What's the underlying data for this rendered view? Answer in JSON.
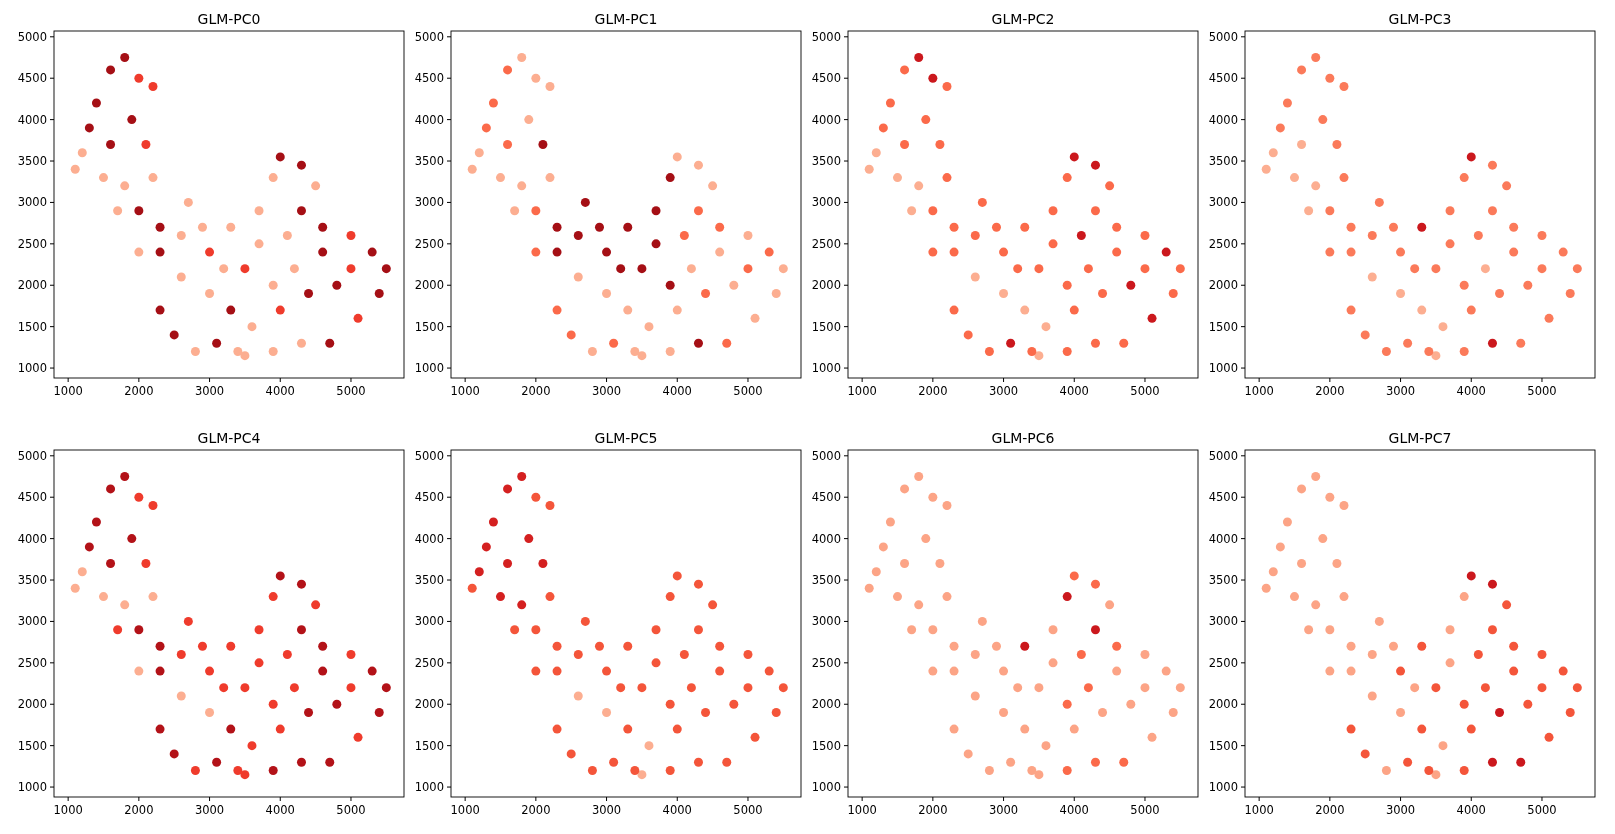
{
  "chart_data": [
    {
      "type": "scatter",
      "title": "GLM-PC0",
      "xlim": [
        800,
        5750
      ],
      "ylim": [
        880,
        5070
      ],
      "xticks": [
        1000,
        2000,
        3000,
        4000,
        5000
      ],
      "yticks": [
        1000,
        1500,
        2000,
        2500,
        3000,
        3500,
        4000,
        4500,
        5000
      ],
      "marker": "circle",
      "series": [
        {
          "color": "#fcae91",
          "x": [
            1100,
            1500,
            1800,
            2200,
            1700,
            2600,
            2900,
            3300,
            2600,
            2800,
            3000,
            3700,
            3700,
            3900,
            4500,
            4100,
            4300,
            3900,
            3500,
            3600,
            4200,
            3900,
            3400,
            2700,
            1200,
            2000,
            3200
          ],
          "values": [
            3400,
            3300,
            3200,
            3300,
            2900,
            2600,
            2700,
            2700,
            2100,
            1200,
            1900,
            2500,
            2900,
            3300,
            3200,
            2600,
            1300,
            1200,
            1150,
            1500,
            2200,
            2000,
            1200,
            3000,
            3600,
            2400,
            2200
          ]
        },
        {
          "color": "#ef3b2c",
          "x": [
            2000,
            2200,
            2100,
            3000,
            3500,
            5000,
            5100,
            4000,
            5000
          ],
          "values": [
            4500,
            4400,
            3700,
            2400,
            2200,
            2600,
            1600,
            1700,
            2200
          ]
        },
        {
          "color": "#a50f15",
          "x": [
            1400,
            1600,
            1800,
            1900,
            1600,
            1300,
            2000,
            2300,
            2300,
            2300,
            2500,
            3100,
            3300,
            4000,
            4300,
            4300,
            4600,
            5300,
            5500,
            5400,
            4700,
            4400,
            4800,
            4600
          ],
          "values": [
            4200,
            4600,
            4750,
            4000,
            3700,
            3900,
            2900,
            2700,
            2400,
            1700,
            1400,
            1300,
            1700,
            3550,
            3450,
            2900,
            2700,
            2400,
            2200,
            1900,
            1300,
            1900,
            2000,
            2400
          ]
        }
      ]
    },
    {
      "type": "scatter",
      "title": "GLM-PC1",
      "xlim": [
        800,
        5750
      ],
      "ylim": [
        880,
        5070
      ],
      "xticks": [
        1000,
        2000,
        3000,
        4000,
        5000
      ],
      "yticks": [
        1000,
        1500,
        2000,
        2500,
        3000,
        3500,
        4000,
        4500,
        5000
      ],
      "marker": "circle",
      "series": [
        {
          "color": "#fcae91",
          "x": [
            1100,
            1800,
            2000,
            2200,
            1900,
            1500,
            1800,
            2200,
            1700,
            2600,
            2800,
            3300,
            3000,
            4000,
            4300,
            4500,
            5000,
            5500,
            5400,
            5100,
            3900,
            3500,
            3600,
            4000,
            4800,
            4200,
            4600,
            3400,
            1200
          ],
          "values": [
            3400,
            4750,
            4500,
            4400,
            4000,
            3300,
            3200,
            3300,
            2900,
            2100,
            1200,
            1700,
            1900,
            3550,
            3450,
            3200,
            2600,
            2200,
            1900,
            1600,
            1200,
            1150,
            1500,
            1700,
            2000,
            2200,
            2400,
            1200,
            3600
          ]
        },
        {
          "color": "#fb6a4a",
          "x": [
            1300,
            1400,
            1600,
            1600,
            2000,
            2300,
            2500,
            3100,
            4300,
            4100,
            4600,
            5300,
            4700,
            4400,
            5000,
            2000
          ],
          "values": [
            3900,
            4200,
            4600,
            3700,
            2900,
            1700,
            1400,
            1300,
            2900,
            2600,
            2700,
            2400,
            1300,
            1900,
            2200,
            2400
          ]
        },
        {
          "color": "#a50f15",
          "x": [
            2300,
            2300,
            2600,
            2900,
            3300,
            3000,
            3500,
            3700,
            3700,
            3900,
            2700,
            3200,
            2100,
            4300,
            3900
          ],
          "values": [
            2700,
            2400,
            2600,
            2700,
            2700,
            2400,
            2200,
            2500,
            2900,
            3300,
            3000,
            2200,
            3700,
            1300,
            2000
          ]
        }
      ]
    },
    {
      "type": "scatter",
      "title": "GLM-PC2",
      "xlim": [
        800,
        5750
      ],
      "ylim": [
        880,
        5070
      ],
      "xticks": [
        1000,
        2000,
        3000,
        4000,
        5000
      ],
      "yticks": [
        1000,
        1500,
        2000,
        2500,
        3000,
        3500,
        4000,
        4500,
        5000
      ],
      "marker": "circle",
      "series": [
        {
          "color": "#fcae91",
          "x": [
            1100,
            1500,
            1800,
            1700,
            2600,
            3300,
            3000,
            3500,
            3600,
            1200
          ],
          "values": [
            3400,
            3300,
            3200,
            2900,
            2100,
            1700,
            1900,
            1150,
            1500,
            3600
          ]
        },
        {
          "color": "#fb6a4a",
          "x": [
            1300,
            1400,
            1600,
            2200,
            1900,
            1600,
            2100,
            2200,
            2000,
            2300,
            2300,
            2600,
            2900,
            3300,
            3000,
            2300,
            2500,
            2800,
            3500,
            3700,
            3700,
            3900,
            4500,
            4300,
            4600,
            5000,
            5500,
            5400,
            4700,
            4300,
            3900,
            4000,
            4400,
            4200,
            3900,
            4600,
            5000,
            3400,
            2700,
            2000,
            3200
          ],
          "values": [
            3900,
            4200,
            4600,
            4400,
            4000,
            3700,
            3700,
            3300,
            2900,
            2700,
            2400,
            2600,
            2700,
            2700,
            2400,
            1700,
            1400,
            1200,
            2200,
            2500,
            2900,
            3300,
            3200,
            2900,
            2700,
            2600,
            2200,
            1900,
            1300,
            1300,
            1200,
            1700,
            1900,
            2200,
            2000,
            2400,
            2200,
            1200,
            3000,
            2400,
            2200
          ]
        },
        {
          "color": "#cb181d",
          "x": [
            1800,
            2000,
            4000,
            4300,
            4100,
            5100,
            4800,
            3100,
            5300
          ],
          "values": [
            4750,
            4500,
            3550,
            3450,
            2600,
            1600,
            2000,
            1300,
            2400
          ]
        }
      ]
    },
    {
      "type": "scatter",
      "title": "GLM-PC3",
      "xlim": [
        800,
        5750
      ],
      "ylim": [
        880,
        5070
      ],
      "xticks": [
        1000,
        2000,
        3000,
        4000,
        5000
      ],
      "yticks": [
        1000,
        1500,
        2000,
        2500,
        3000,
        3500,
        4000,
        4500,
        5000
      ],
      "marker": "circle",
      "series": [
        {
          "color": "#fcae91",
          "x": [
            1100,
            1600,
            1500,
            1800,
            1700,
            2600,
            3300,
            3000,
            3500,
            3600,
            1200,
            4200
          ],
          "values": [
            3400,
            3700,
            3300,
            3200,
            2900,
            2100,
            1700,
            1900,
            1150,
            1500,
            3600,
            2200
          ]
        },
        {
          "color": "#fb7a5a",
          "x": [
            1300,
            1400,
            1600,
            1800,
            2000,
            2200,
            1900,
            2100,
            2200,
            2000,
            2300,
            2300,
            2600,
            2900,
            3000,
            2300,
            2500,
            2800,
            3100,
            3500,
            3700,
            3700,
            3900,
            4300,
            4500,
            4300,
            4100,
            4600,
            5000,
            5300,
            5500,
            5400,
            5100,
            4700,
            3900,
            4000,
            4400,
            4800,
            3900,
            4600,
            5000,
            3400,
            2700,
            2000,
            3200
          ],
          "values": [
            3900,
            4200,
            4600,
            4750,
            4500,
            4400,
            4000,
            3700,
            3300,
            2900,
            2700,
            2400,
            2600,
            2700,
            2400,
            1700,
            1400,
            1200,
            1300,
            2200,
            2500,
            2900,
            3300,
            3450,
            3200,
            2900,
            2600,
            2700,
            2600,
            2400,
            2200,
            1900,
            1600,
            1300,
            1200,
            1700,
            1900,
            2000,
            2000,
            2400,
            2200,
            1200,
            3000,
            2400,
            2200
          ]
        },
        {
          "color": "#cb181d",
          "x": [
            3300,
            4000,
            4300
          ],
          "values": [
            2700,
            3550,
            1300
          ]
        }
      ]
    },
    {
      "type": "scatter",
      "title": "GLM-PC4",
      "xlim": [
        800,
        5750
      ],
      "ylim": [
        880,
        5070
      ],
      "xticks": [
        1000,
        2000,
        3000,
        4000,
        5000
      ],
      "yticks": [
        1000,
        1500,
        2000,
        2500,
        3000,
        3500,
        4000,
        4500,
        5000
      ],
      "marker": "circle",
      "series": [
        {
          "color": "#fcae91",
          "x": [
            1100,
            1500,
            1800,
            2200,
            2600,
            3000,
            1200,
            2000
          ],
          "values": [
            3400,
            3300,
            3200,
            3300,
            2100,
            1900,
            3600,
            2400
          ]
        },
        {
          "color": "#ef3b2c",
          "x": [
            2000,
            2200,
            2100,
            1700,
            2600,
            2900,
            3300,
            3000,
            2800,
            3500,
            3700,
            3700,
            3900,
            4500,
            4100,
            5000,
            5100,
            3500,
            3600,
            4000,
            4200,
            3900,
            5000,
            3400,
            2700,
            3200
          ],
          "values": [
            4500,
            4400,
            3700,
            2900,
            2600,
            2700,
            2700,
            2400,
            1200,
            2200,
            2500,
            2900,
            3300,
            3200,
            2600,
            2600,
            1600,
            1150,
            1500,
            1700,
            2200,
            2000,
            2200,
            1200,
            3000,
            2200
          ]
        },
        {
          "color": "#b31218",
          "x": [
            1400,
            1600,
            1800,
            1900,
            1600,
            1300,
            2000,
            2300,
            2300,
            2300,
            2500,
            3100,
            3300,
            4000,
            4300,
            4300,
            4600,
            5300,
            5500,
            5400,
            4700,
            4400,
            4800,
            4600,
            4300,
            3900
          ],
          "values": [
            4200,
            4600,
            4750,
            4000,
            3700,
            3900,
            2900,
            2700,
            2400,
            1700,
            1400,
            1300,
            1700,
            3550,
            3450,
            2900,
            2700,
            2400,
            2200,
            1900,
            1300,
            1900,
            2000,
            2400,
            1300,
            1200
          ]
        }
      ]
    },
    {
      "type": "scatter",
      "title": "GLM-PC5",
      "xlim": [
        800,
        5750
      ],
      "ylim": [
        880,
        5070
      ],
      "xticks": [
        1000,
        2000,
        3000,
        4000,
        5000
      ],
      "yticks": [
        1000,
        1500,
        2000,
        2500,
        3000,
        3500,
        4000,
        4500,
        5000
      ],
      "marker": "circle",
      "series": [
        {
          "color": "#fcae91",
          "x": [
            2600,
            3000,
            3500,
            3600
          ],
          "values": [
            2100,
            1900,
            1150,
            1500
          ]
        },
        {
          "color": "#f4553a",
          "x": [
            1100,
            2000,
            2200,
            2200,
            2000,
            1700,
            2300,
            2300,
            2600,
            2900,
            3300,
            3000,
            2300,
            2500,
            2800,
            3100,
            3300,
            3500,
            3700,
            3700,
            3900,
            4000,
            4300,
            4500,
            4300,
            4100,
            4600,
            5000,
            5300,
            5500,
            5400,
            5100,
            4700,
            4300,
            3900,
            4000,
            4400,
            4800,
            4200,
            3900,
            4600,
            5000,
            3400,
            2700,
            2000,
            3200
          ],
          "values": [
            3400,
            4500,
            4400,
            3300,
            2900,
            2900,
            2700,
            2400,
            2600,
            2700,
            2700,
            2400,
            1700,
            1400,
            1200,
            1300,
            1700,
            2200,
            2500,
            2900,
            3300,
            3550,
            3450,
            3200,
            2900,
            2600,
            2700,
            2600,
            2400,
            2200,
            1900,
            1600,
            1300,
            1300,
            1200,
            1700,
            1900,
            2000,
            2200,
            2000,
            2400,
            2200,
            1200,
            3000,
            2400,
            2200
          ]
        },
        {
          "color": "#d42020",
          "x": [
            1300,
            1400,
            1600,
            1800,
            1900,
            1600,
            1500,
            1800,
            2100,
            1200
          ],
          "values": [
            3900,
            4200,
            4600,
            4750,
            4000,
            3700,
            3300,
            3200,
            3700,
            3600
          ]
        }
      ]
    },
    {
      "type": "scatter",
      "title": "GLM-PC6",
      "xlim": [
        800,
        5750
      ],
      "ylim": [
        880,
        5070
      ],
      "xticks": [
        1000,
        2000,
        3000,
        4000,
        5000
      ],
      "yticks": [
        1000,
        1500,
        2000,
        2500,
        3000,
        3500,
        4000,
        4500,
        5000
      ],
      "marker": "circle",
      "series": [
        {
          "color": "#fca486",
          "x": [
            1100,
            1300,
            1400,
            1600,
            1800,
            2000,
            2200,
            1900,
            1600,
            1500,
            1800,
            2100,
            2200,
            2000,
            1700,
            2300,
            2300,
            2600,
            2900,
            3000,
            2600,
            2300,
            2500,
            2800,
            3100,
            3300,
            3000,
            3500,
            3700,
            3700,
            4500,
            5000,
            5300,
            5500,
            5400,
            5100,
            3500,
            3600,
            4000,
            4400,
            4800,
            4600,
            5000,
            3400,
            2700,
            1200,
            2000,
            3200
          ],
          "values": [
            3400,
            3900,
            4200,
            4600,
            4750,
            4500,
            4400,
            4000,
            3700,
            3300,
            3200,
            3700,
            3300,
            2900,
            2900,
            2700,
            2400,
            2600,
            2700,
            2400,
            2100,
            1700,
            1400,
            1200,
            1300,
            1700,
            1900,
            2200,
            2500,
            2900,
            3200,
            2600,
            2400,
            2200,
            1900,
            1600,
            1150,
            1500,
            1700,
            1900,
            2000,
            2400,
            2200,
            1200,
            3000,
            3600,
            2400,
            2200
          ]
        },
        {
          "color": "#fb6a4a",
          "x": [
            4000,
            4300,
            4100,
            4600,
            4700,
            4300,
            3900,
            4200,
            3900
          ],
          "values": [
            3550,
            3450,
            2600,
            2700,
            1300,
            1300,
            1200,
            2200,
            2000
          ]
        },
        {
          "color": "#cb181d",
          "x": [
            3300,
            3900,
            4300
          ],
          "values": [
            2700,
            3300,
            2900
          ]
        }
      ]
    },
    {
      "type": "scatter",
      "title": "GLM-PC7",
      "xlim": [
        800,
        5750
      ],
      "ylim": [
        880,
        5070
      ],
      "xticks": [
        1000,
        2000,
        3000,
        4000,
        5000
      ],
      "yticks": [
        1000,
        1500,
        2000,
        2500,
        3000,
        3500,
        4000,
        4500,
        5000
      ],
      "marker": "circle",
      "series": [
        {
          "color": "#fca486",
          "x": [
            1100,
            1300,
            1400,
            1600,
            1800,
            2000,
            2200,
            1900,
            1600,
            1500,
            1800,
            2100,
            2200,
            2000,
            1700,
            2300,
            2300,
            2600,
            2900,
            2600,
            2800,
            3000,
            3700,
            3700,
            3900,
            3500,
            3600,
            2700,
            1200,
            2000,
            3200
          ],
          "values": [
            3400,
            3900,
            4200,
            4600,
            4750,
            4500,
            4400,
            4000,
            3700,
            3300,
            3200,
            3700,
            3300,
            2900,
            2900,
            2700,
            2400,
            2600,
            2700,
            2100,
            1200,
            1900,
            2500,
            2900,
            3300,
            1150,
            1500,
            3000,
            3600,
            2400,
            2200
          ]
        },
        {
          "color": "#f4553a",
          "x": [
            3300,
            3000,
            3100,
            3300,
            3500,
            4500,
            4300,
            4100,
            4600,
            5000,
            5300,
            5500,
            5400,
            5100,
            3900,
            4000,
            4800,
            4200,
            3900,
            4600,
            5000,
            3400,
            2300,
            2500
          ],
          "values": [
            2700,
            2400,
            1300,
            1700,
            2200,
            3200,
            2900,
            2600,
            2700,
            2600,
            2400,
            2200,
            1900,
            1600,
            1200,
            1700,
            2000,
            2200,
            2000,
            2400,
            2200,
            1200,
            1700,
            1400
          ]
        },
        {
          "color": "#cb181d",
          "x": [
            4000,
            4300,
            4700,
            4300,
            4400
          ],
          "values": [
            3550,
            3450,
            1300,
            1300,
            1900
          ]
        }
      ]
    }
  ]
}
